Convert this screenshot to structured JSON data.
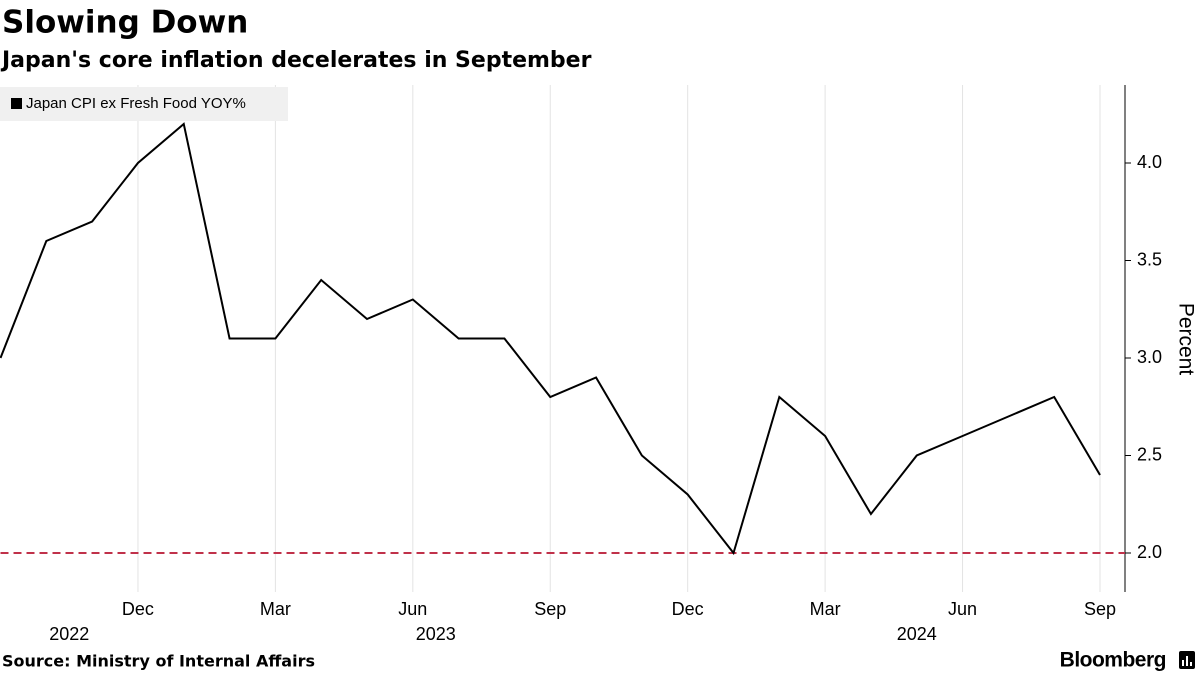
{
  "chart_data": {
    "type": "line",
    "title": "Slowing Down",
    "subtitle": "Japan's core inflation decelerates in September",
    "x": [
      "2022-09",
      "2022-10",
      "2022-11",
      "2022-12",
      "2023-01",
      "2023-02",
      "2023-03",
      "2023-04",
      "2023-05",
      "2023-06",
      "2023-07",
      "2023-08",
      "2023-09",
      "2023-10",
      "2023-11",
      "2023-12",
      "2024-01",
      "2024-02",
      "2024-03",
      "2024-04",
      "2024-05",
      "2024-06",
      "2024-07",
      "2024-08",
      "2024-09"
    ],
    "series": [
      {
        "name": "Japan CPI ex Fresh Food YOY%",
        "color": "#000000",
        "values": [
          3.0,
          3.6,
          3.7,
          4.0,
          4.2,
          3.1,
          3.1,
          3.4,
          3.2,
          3.3,
          3.1,
          3.1,
          2.8,
          2.9,
          2.5,
          2.3,
          2.0,
          2.8,
          2.6,
          2.2,
          2.5,
          2.6,
          2.7,
          2.8,
          2.4
        ]
      }
    ],
    "xticks": [
      {
        "value": "2022-12",
        "label": "Dec"
      },
      {
        "value": "2023-03",
        "label": "Mar"
      },
      {
        "value": "2023-06",
        "label": "Jun"
      },
      {
        "value": "2023-09",
        "label": "Sep"
      },
      {
        "value": "2023-12",
        "label": "Dec"
      },
      {
        "value": "2024-03",
        "label": "Mar"
      },
      {
        "value": "2024-06",
        "label": "Jun"
      },
      {
        "value": "2024-09",
        "label": "Sep"
      }
    ],
    "year_labels": [
      "2022",
      "2023",
      "2024"
    ],
    "ylim": [
      1.8,
      4.4
    ],
    "yticks": [
      {
        "value": 2,
        "label": "2.0"
      },
      2.5,
      {
        "value": 3,
        "label": "3.0"
      },
      3.5,
      {
        "value": 4,
        "label": "4.0"
      }
    ],
    "y_axis_label": "Percent",
    "y_axis_side": "right",
    "reference_line": {
      "value": 2,
      "color": "#c0314a",
      "style": "dashed"
    },
    "grid": "x",
    "legend_position": "top-left",
    "source": "Source: Ministry of Internal Affairs",
    "brand": "Bloomberg"
  }
}
